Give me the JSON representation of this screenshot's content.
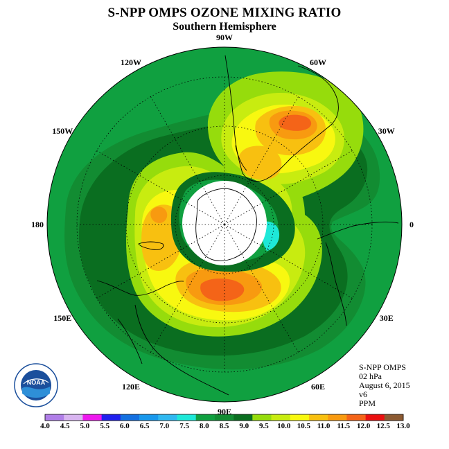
{
  "title": "S-NPP OMPS OZONE MIXING RATIO",
  "subtitle": "Southern Hemisphere",
  "longitude_labels": [
    {
      "text": "90W",
      "lon": -90
    },
    {
      "text": "60W",
      "lon": -60
    },
    {
      "text": "120W",
      "lon": -120
    },
    {
      "text": "30W",
      "lon": -30
    },
    {
      "text": "150W",
      "lon": -150
    },
    {
      "text": "0",
      "lon": 0
    },
    {
      "text": "180",
      "lon": 180
    },
    {
      "text": "30E",
      "lon": 30
    },
    {
      "text": "150E",
      "lon": 150
    },
    {
      "text": "60E",
      "lon": 60
    },
    {
      "text": "120E",
      "lon": 120
    },
    {
      "text": "90E",
      "lon": 90
    }
  ],
  "info": {
    "instrument": "S-NPP OMPS",
    "level": "02 hPa",
    "date": "August 6, 2015",
    "version": "v6",
    "units": "PPM"
  },
  "logo_text": "NOAA",
  "colorbar": {
    "ticks": [
      "4.0",
      "4.5",
      "5.0",
      "5.5",
      "6.0",
      "6.5",
      "7.0",
      "7.5",
      "8.0",
      "8.5",
      "9.0",
      "9.5",
      "10.0",
      "10.5",
      "11.0",
      "11.5",
      "12.0",
      "12.5",
      "13.0"
    ],
    "colors": [
      "#b07ee8",
      "#d8b4f0",
      "#ee18ee",
      "#2020ee",
      "#1470e0",
      "#1898ec",
      "#30b8f0",
      "#1ee8d8",
      "#10a040",
      "#128c32",
      "#0a6e20",
      "#96dc0c",
      "#c8ec10",
      "#f8f810",
      "#f8c010",
      "#f89a10",
      "#f46418",
      "#ea1010",
      "#8c5a32"
    ]
  },
  "legend_colors": {
    "dark_green": "#0a6e20",
    "mid_green": "#128c32",
    "light_green": "#10a040",
    "lime": "#96dc0c",
    "yellow_green": "#c8ec10",
    "yellow": "#f8f810",
    "gold": "#f8c010",
    "orange": "#f89a10",
    "red_orange": "#f46418",
    "cyan": "#1ee8d8"
  }
}
